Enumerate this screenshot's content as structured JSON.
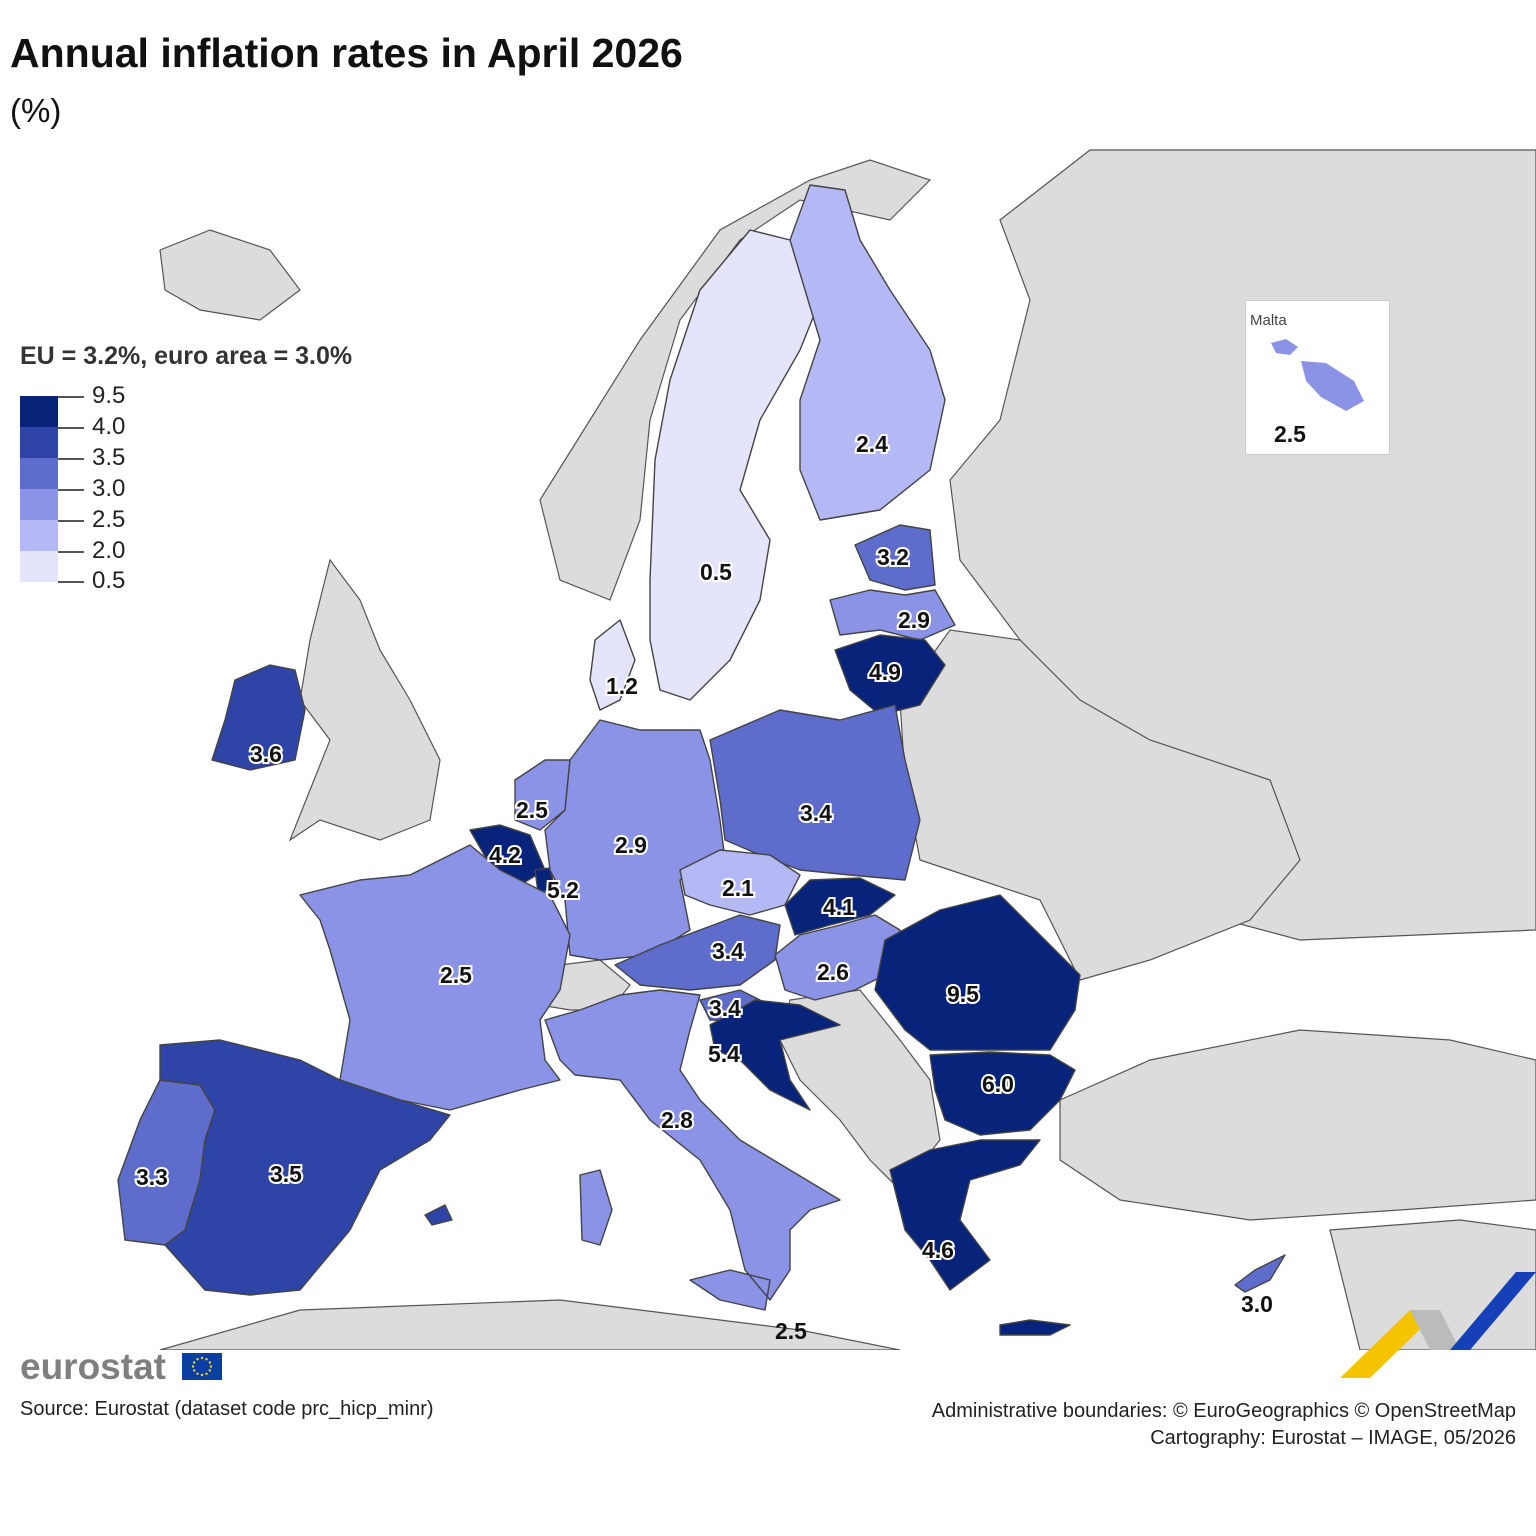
{
  "title": "Annual inflation rates in April 2026",
  "subtitle": "(%)",
  "legend": {
    "heading": "EU = 3.2%, euro area = 3.0%",
    "classes": [
      {
        "label": "9.5",
        "color": "#08237a"
      },
      {
        "label": "4.0",
        "color": "#2e44a6"
      },
      {
        "label": "3.5",
        "color": "#5e6ccb"
      },
      {
        "label": "3.0",
        "color": "#8a93e6"
      },
      {
        "label": "2.5",
        "color": "#b4b9f5"
      },
      {
        "label": "2.0",
        "color": "#e4e5fb"
      },
      {
        "label": "0.5",
        "color": ""
      }
    ]
  },
  "inset": {
    "title": "Malta",
    "value": "2.5"
  },
  "countries": [
    {
      "name": "Sweden",
      "value": "0.5"
    },
    {
      "name": "Finland",
      "value": "2.4"
    },
    {
      "name": "Estonia",
      "value": "3.2"
    },
    {
      "name": "Latvia",
      "value": "2.9"
    },
    {
      "name": "Lithuania",
      "value": "4.9"
    },
    {
      "name": "Denmark",
      "value": "1.2"
    },
    {
      "name": "Ireland",
      "value": "3.6"
    },
    {
      "name": "Netherlands",
      "value": "2.5"
    },
    {
      "name": "Belgium",
      "value": "4.2"
    },
    {
      "name": "Luxembourg",
      "value": "5.2"
    },
    {
      "name": "Germany",
      "value": "2.9"
    },
    {
      "name": "Poland",
      "value": "3.4"
    },
    {
      "name": "Czechia",
      "value": "2.1"
    },
    {
      "name": "Slovakia",
      "value": "4.1"
    },
    {
      "name": "Austria",
      "value": "3.4"
    },
    {
      "name": "Hungary",
      "value": "2.6"
    },
    {
      "name": "Romania",
      "value": "9.5"
    },
    {
      "name": "Slovenia",
      "value": "3.4"
    },
    {
      "name": "Croatia",
      "value": "5.4"
    },
    {
      "name": "Bulgaria",
      "value": "6.0"
    },
    {
      "name": "France",
      "value": "2.5"
    },
    {
      "name": "Italy",
      "value": "2.8"
    },
    {
      "name": "Portugal",
      "value": "3.3"
    },
    {
      "name": "Spain",
      "value": "3.5"
    },
    {
      "name": "Greece",
      "value": "4.6"
    },
    {
      "name": "Cyprus",
      "value": "3.0"
    },
    {
      "name": "Malta",
      "value": "2.5"
    }
  ],
  "logo": "eurostat",
  "source": "Source: Eurostat (dataset code prc_hicp_minr)",
  "credits": {
    "line1": "Administrative boundaries: © EuroGeographics © OpenStreetMap",
    "line2": "Cartography: Eurostat – IMAGE, 05/2026"
  }
}
